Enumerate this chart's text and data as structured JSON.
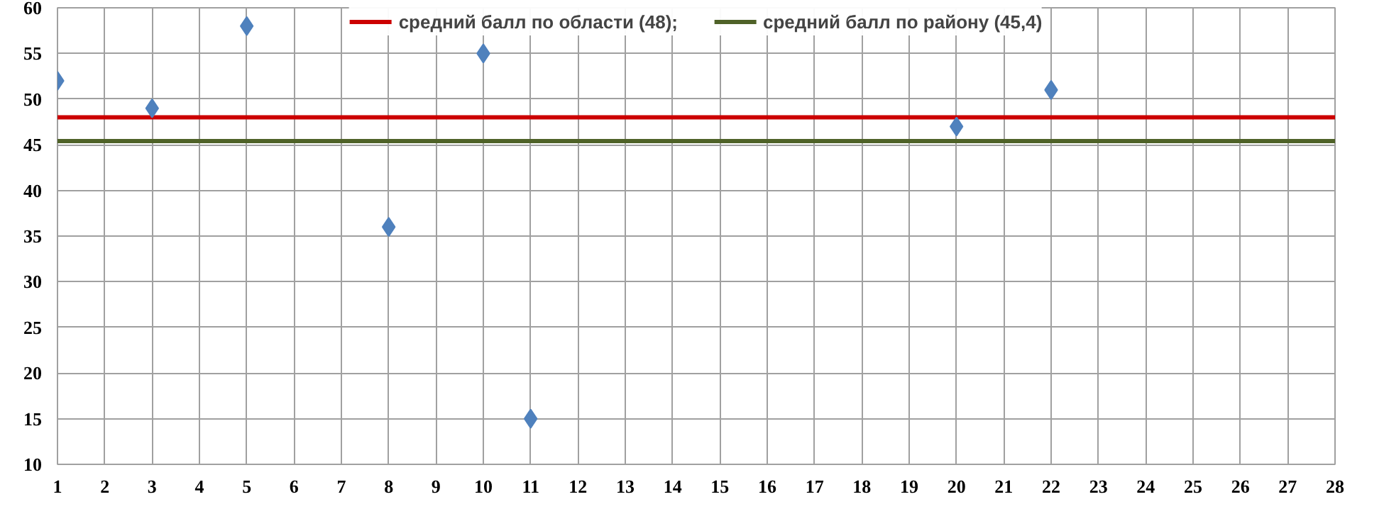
{
  "chart_data": {
    "type": "scatter",
    "marker": "diamond",
    "grid": true,
    "legend": "top",
    "x": [
      1,
      3,
      5,
      8,
      10,
      11,
      20,
      22
    ],
    "series": [
      {
        "color": "#4f81bd",
        "values": [
          52,
          49,
          58,
          36,
          55,
          15,
          47,
          51
        ]
      }
    ],
    "xlim": [
      1,
      28
    ],
    "xticks": [
      1,
      2,
      3,
      4,
      5,
      6,
      7,
      8,
      9,
      10,
      11,
      12,
      13,
      14,
      15,
      16,
      17,
      18,
      19,
      20,
      21,
      22,
      23,
      24,
      25,
      26,
      27,
      28
    ],
    "ylim": [
      10,
      60
    ],
    "yticks": [
      10,
      15,
      20,
      25,
      30,
      35,
      40,
      45,
      50,
      55,
      60
    ],
    "ref_lines": [
      {
        "axis": "y",
        "value": 48,
        "label": "средний балл по области (48);",
        "color": "#cc0000"
      },
      {
        "axis": "y",
        "value": 45.4,
        "label": "средний балл по району (45,4)",
        "color": "#4f6228"
      }
    ]
  }
}
